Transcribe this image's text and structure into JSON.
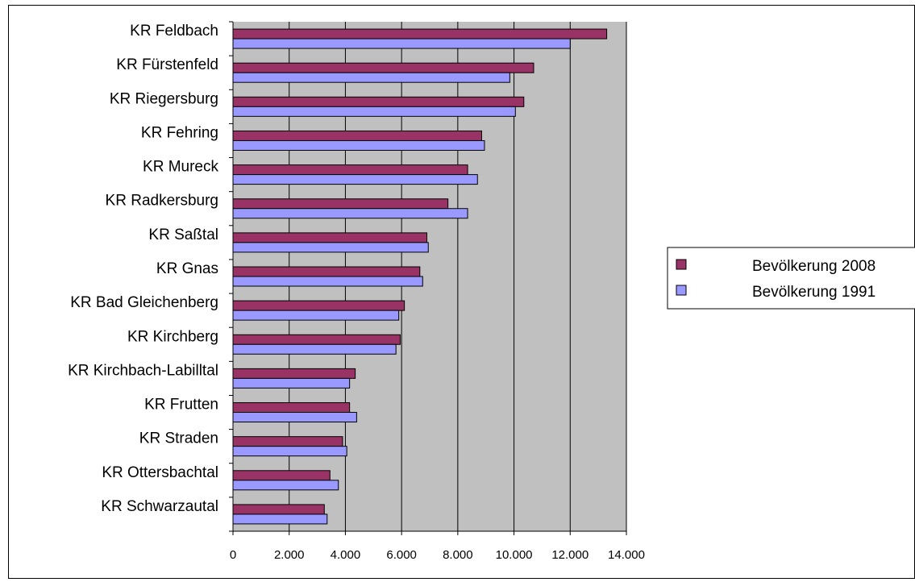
{
  "chart_data": {
    "type": "bar",
    "orientation": "horizontal",
    "categories": [
      "KR Feldbach",
      "KR Fürstenfeld",
      "KR Riegersburg",
      "KR Fehring",
      "KR Mureck",
      "KR Radkersburg",
      "KR Saßtal",
      "KR Gnas",
      "KR Bad Gleichenberg",
      "KR Kirchberg",
      "KR Kirchbach-Labilltal",
      "KR Frutten",
      "KR Straden",
      "KR Ottersbachtal",
      "KR Schwarzautal"
    ],
    "series": [
      {
        "name": "Bevölkerung 2008",
        "color": "#993366",
        "values": [
          13300,
          10700,
          10350,
          8850,
          8350,
          7650,
          6900,
          6650,
          6100,
          5950,
          4350,
          4150,
          3900,
          3450,
          3250
        ]
      },
      {
        "name": "Bevölkerung 1991",
        "color": "#9999FF",
        "values": [
          12000,
          9850,
          10050,
          8950,
          8700,
          8350,
          6950,
          6750,
          5900,
          5800,
          4150,
          4400,
          4050,
          3750,
          3350
        ]
      }
    ],
    "xlim": [
      0,
      14000
    ],
    "xticks": [
      "0",
      "2.000",
      "4.000",
      "6.000",
      "8.000",
      "10.000",
      "12.000",
      "14.000"
    ],
    "grid": true,
    "plot_background": "#C0C0C0",
    "legend_position": "right"
  }
}
